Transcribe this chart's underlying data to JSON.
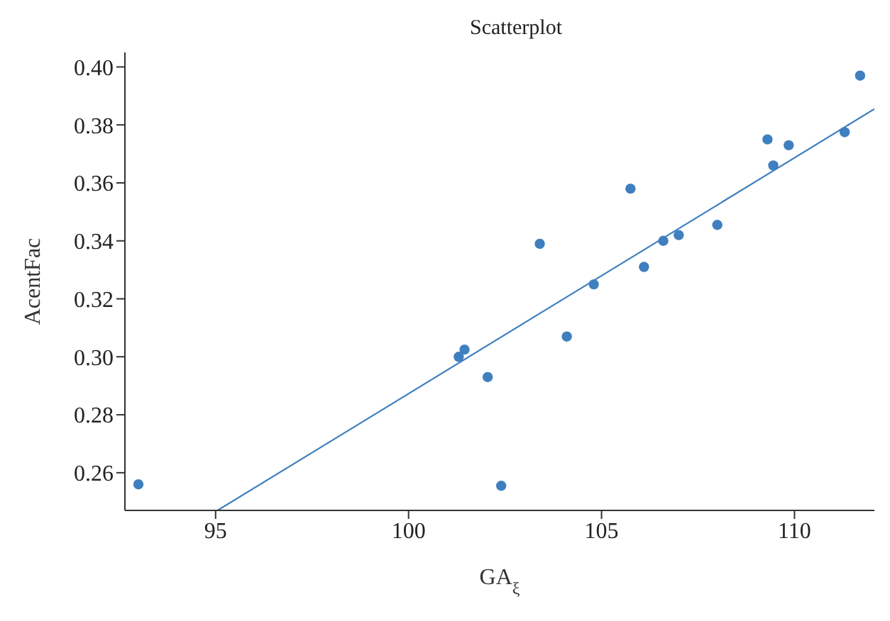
{
  "chart_data": {
    "type": "scatter",
    "title": "Scatterplot",
    "xlabel": "GA$_{ξ}$",
    "ylabel": "AcentFac",
    "xlim": [
      92.65,
      112.07
    ],
    "xticks": [
      95,
      100,
      105,
      110
    ],
    "ylim": [
      0.247,
      0.405
    ],
    "yticks": [
      0.26,
      0.28,
      {
        "value": 0.3,
        "label": "0.30"
      },
      0.32,
      0.34,
      0.36,
      0.38,
      {
        "value": 0.4,
        "label": "0.40"
      }
    ],
    "grid": false,
    "series": [
      {
        "color": "#3f7fbf",
        "marker": "circle",
        "x": [
          93,
          101.3,
          101.45,
          102.05,
          102.4,
          103.4,
          104.1,
          104.8,
          105.75,
          106.1,
          106.6,
          107,
          108,
          109.3,
          109.45,
          109.85,
          111.3,
          111.7
        ],
        "values": [
          0.256,
          0.3,
          0.3025,
          0.293,
          0.2555,
          0.339,
          0.307,
          0.325,
          0.358,
          0.331,
          0.34,
          0.342,
          0.3455,
          0.375,
          0.366,
          0.373,
          0.3775,
          0.397
        ]
      },
      {
        "type": "line",
        "color": "#3f7fbf",
        "marker": "none",
        "x": [
          95.05,
          112.07
        ],
        "values": [
          0.247,
          0.3855
        ]
      }
    ]
  }
}
